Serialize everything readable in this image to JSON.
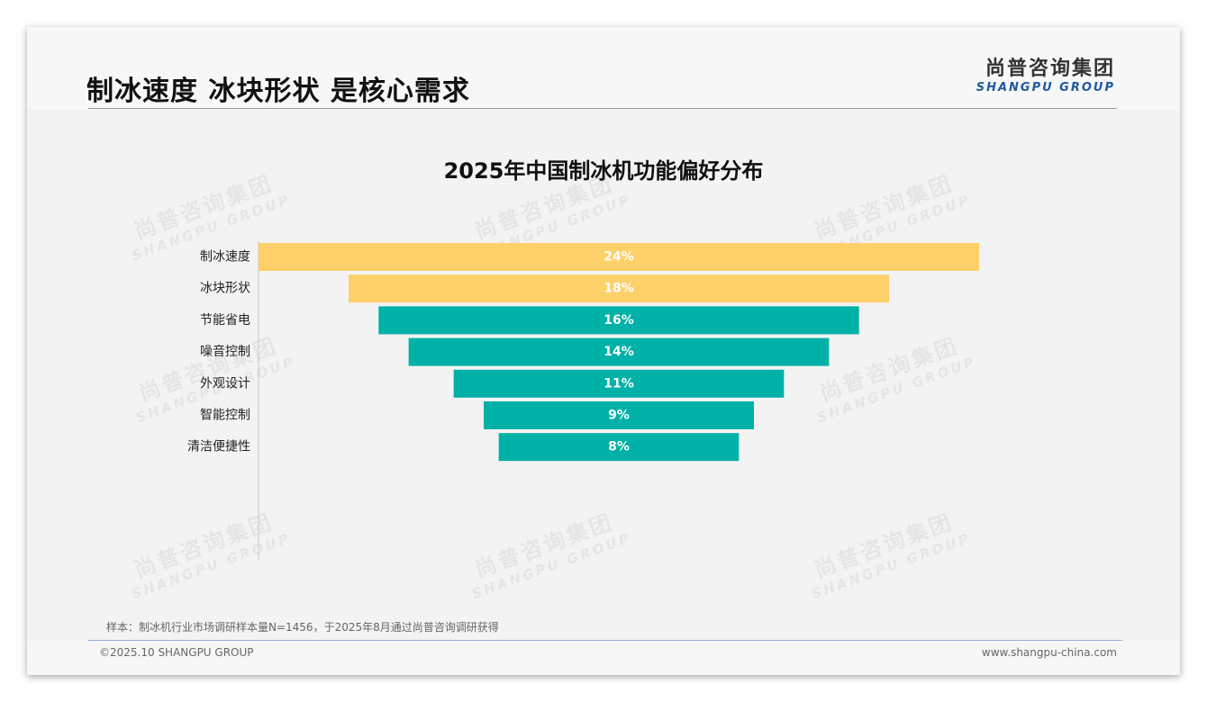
{
  "header": {
    "title": "制冰速度 冰块形状 是核心需求",
    "logo_cn": "尚普咨询集团",
    "logo_en": "SHANGPU GROUP"
  },
  "watermark": {
    "cn": "尚普咨询集团",
    "en": "SHANGPU GROUP"
  },
  "chart_data": {
    "type": "bar",
    "orientation": "horizontal-funnel",
    "title": "2025年中国制冰机功能偏好分布",
    "categories": [
      "制冰速度",
      "冰块形状",
      "节能省电",
      "噪音控制",
      "外观设计",
      "智能控制",
      "清洁便捷性"
    ],
    "values": [
      24,
      18,
      16,
      14,
      11,
      9,
      8
    ],
    "labels": [
      "24%",
      "18%",
      "16%",
      "14%",
      "11%",
      "9%",
      "8%"
    ],
    "unit": "%",
    "colors": [
      "#fdd06a",
      "#fdd06a",
      "#00b1a7",
      "#00b1a7",
      "#00b1a7",
      "#00b1a7",
      "#00b1a7"
    ],
    "xlim": [
      0,
      24
    ],
    "grid": false,
    "legend": "none"
  },
  "footer": {
    "note": "样本：制冰机行业市场调研样本量N=1456，于2025年8月通过尚普咨询调研获得",
    "copyright": "©2025.10 SHANGPU GROUP",
    "website": "www.shangpu-china.com"
  }
}
